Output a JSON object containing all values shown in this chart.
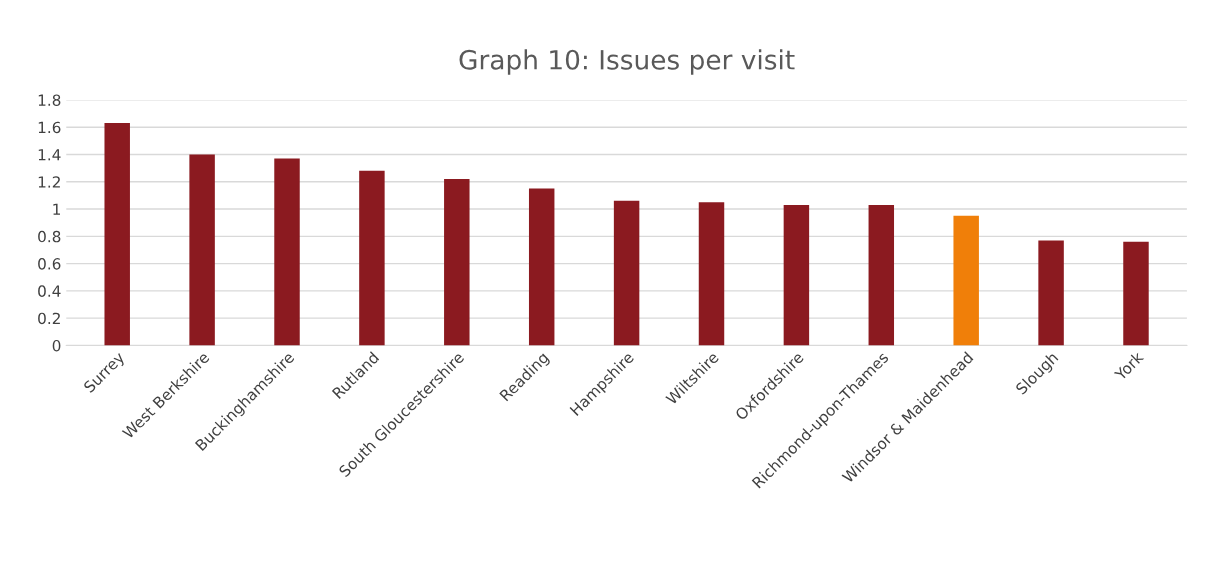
{
  "chart_data": {
    "type": "bar",
    "title": "Graph 10: Issues per visit",
    "categories": [
      "Surrey",
      "West Berkshire",
      "Buckinghamshire",
      "Rutland",
      "South Gloucestershire",
      "Reading",
      "Hampshire",
      "Wiltshire",
      "Oxfordshire",
      "Richmond-upon-Thames",
      "Windsor & Maidenhead",
      "Slough",
      "York"
    ],
    "values": [
      1.63,
      1.4,
      1.37,
      1.28,
      1.22,
      1.15,
      1.06,
      1.05,
      1.03,
      1.03,
      0.95,
      0.77,
      0.76
    ],
    "colors": [
      "#8b1a20",
      "#8b1a20",
      "#8b1a20",
      "#8b1a20",
      "#8b1a20",
      "#8b1a20",
      "#8b1a20",
      "#8b1a20",
      "#8b1a20",
      "#8b1a20",
      "#f07f09",
      "#8b1a20",
      "#8b1a20"
    ],
    "ylim": [
      0,
      1.8
    ],
    "yticks": [
      0,
      0.2,
      0.4,
      0.6,
      0.8,
      1,
      1.2,
      1.4,
      1.6,
      1.8
    ],
    "grid": "y"
  }
}
